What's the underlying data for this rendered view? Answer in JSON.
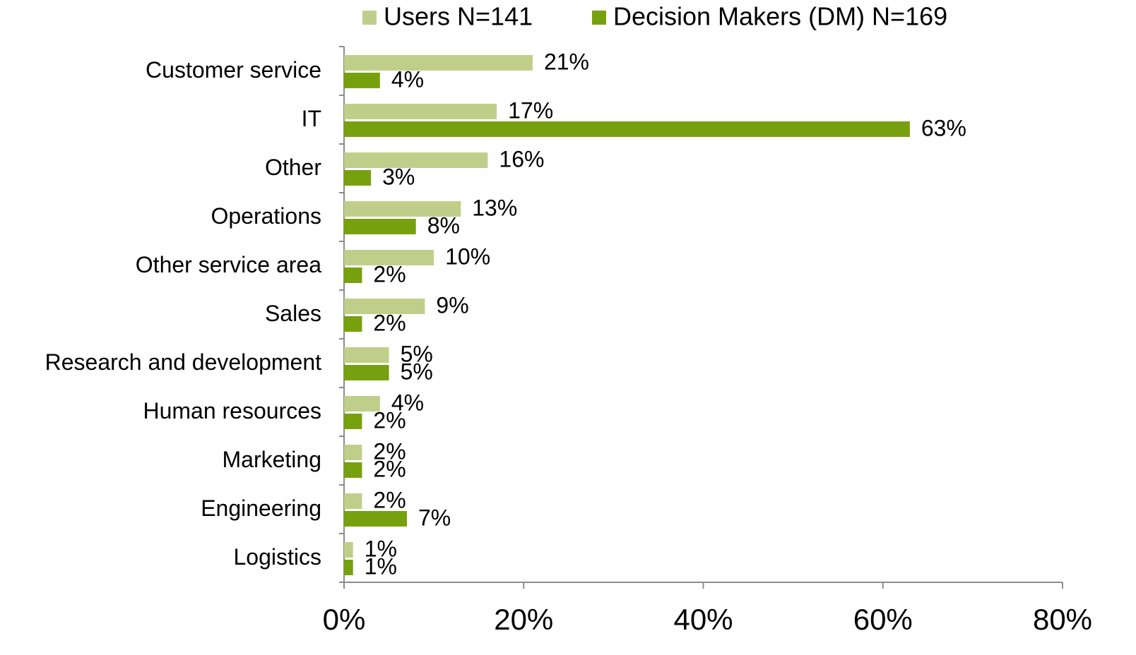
{
  "chart_data": {
    "type": "bar",
    "orientation": "horizontal",
    "categories": [
      "Customer service",
      "IT",
      "Other",
      "Operations",
      "Other service area",
      "Sales",
      "Research and development",
      "Human resources",
      "Marketing",
      "Engineering",
      "Logistics"
    ],
    "series": [
      {
        "name": "Users N=141",
        "color": "#bfcf8a",
        "values": [
          21,
          17,
          16,
          13,
          10,
          9,
          5,
          4,
          2,
          2,
          1
        ],
        "value_labels": [
          "21%",
          "17%",
          "16%",
          "13%",
          "10%",
          "9%",
          "5%",
          "4%",
          "2%",
          "2%",
          "1%"
        ]
      },
      {
        "name": "Decision Makers (DM) N=169",
        "color": "#77a00f",
        "values": [
          4,
          63,
          3,
          8,
          2,
          2,
          5,
          2,
          2,
          7,
          1
        ],
        "value_labels": [
          "4%",
          "63%",
          "3%",
          "8%",
          "2%",
          "2%",
          "5%",
          "2%",
          "2%",
          "7%",
          "1%"
        ]
      }
    ],
    "xlim": [
      0,
      80
    ],
    "xticks": [
      {
        "value": 0,
        "label": "0%"
      },
      {
        "value": 20,
        "label": "20%"
      },
      {
        "value": 40,
        "label": "40%"
      },
      {
        "value": 60,
        "label": "60%"
      },
      {
        "value": 80,
        "label": "80%"
      }
    ],
    "legend": "top"
  }
}
